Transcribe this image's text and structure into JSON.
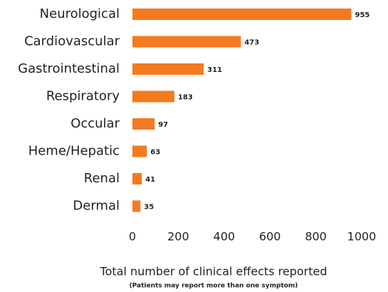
{
  "chart_data": {
    "type": "bar",
    "orientation": "horizontal",
    "categories": [
      "Neurological",
      "Cardiovascular",
      "Gastrointestinal",
      "Respiratory",
      "Occular",
      "Heme/Hepatic",
      "Renal",
      "Dermal"
    ],
    "values": [
      955,
      473,
      311,
      183,
      97,
      63,
      41,
      35
    ],
    "color": "#f47a20",
    "xlim": [
      0,
      1000
    ],
    "xticks": [
      0,
      200,
      400,
      600,
      800,
      1000
    ],
    "x_label": "Total number of clinical effects reported",
    "note": "(Patients may report more than one symptom)",
    "grid": false
  }
}
